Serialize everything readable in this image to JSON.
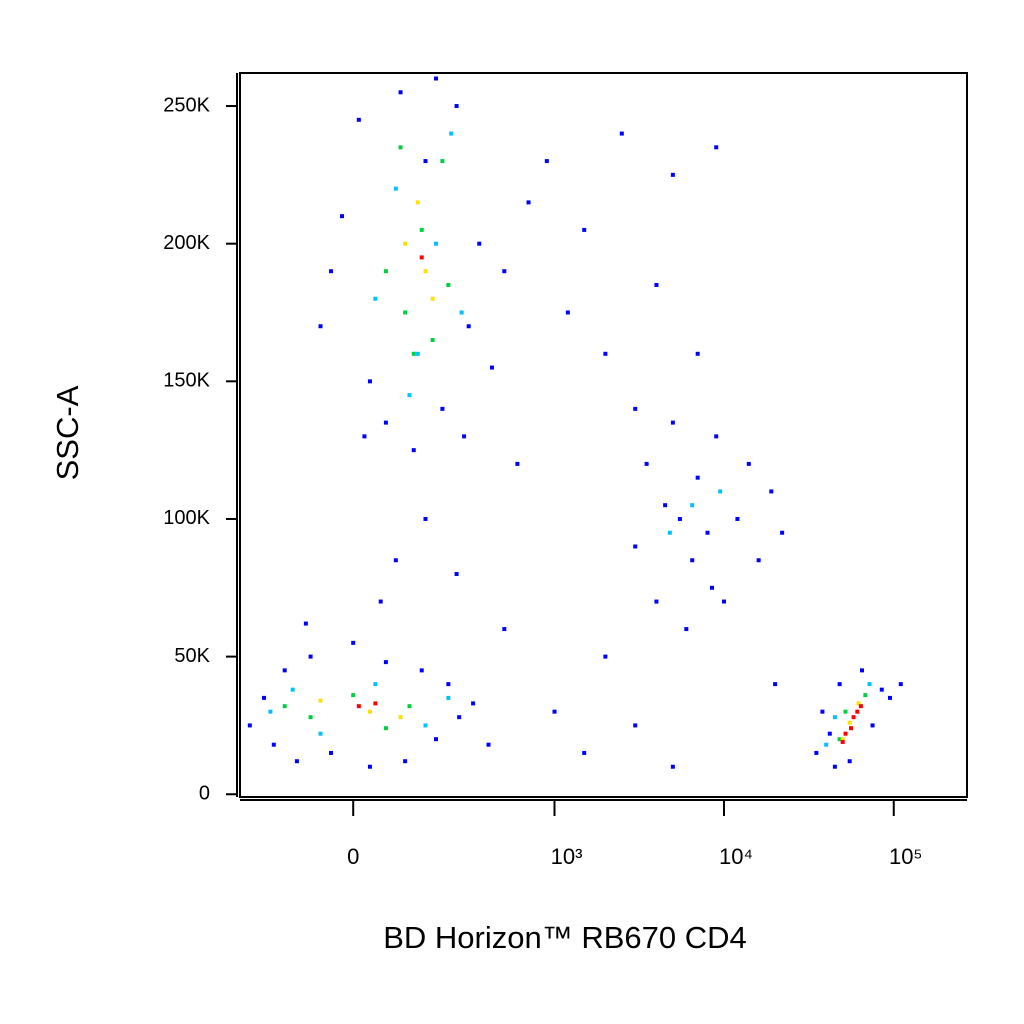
{
  "chart_data": {
    "type": "scatter",
    "x_label": "BD Horizon™ RB670 CD4",
    "y_label": "SSC-A",
    "xscale": "biexponential",
    "xlim": [
      -290,
      270000
    ],
    "ylim": [
      -1000,
      262000
    ],
    "xticks": [
      0,
      {
        "value": 1000,
        "label": "10³"
      },
      {
        "value": 10000,
        "label": "10⁴"
      },
      {
        "value": 100000,
        "label": "10⁵"
      }
    ],
    "yticks": [
      0,
      {
        "value": 50000,
        "label": "50K"
      },
      {
        "value": 100000,
        "label": "100K"
      },
      {
        "value": 150000,
        "label": "150K"
      },
      {
        "value": 200000,
        "label": "200K"
      },
      {
        "value": 250000,
        "label": "250K"
      }
    ],
    "series": [
      {
        "color": "#0000ff",
        "x": [
          -60,
          -20,
          10,
          30,
          60,
          90,
          120,
          150,
          200,
          250,
          300,
          350,
          420,
          -40,
          20,
          180,
          280,
          500,
          700,
          900,
          1200,
          1500,
          2000,
          2500,
          3000,
          4000,
          5000,
          7000,
          9000,
          600,
          -250,
          -200,
          -170,
          -140,
          -110,
          -80,
          -40,
          0,
          30,
          60,
          100,
          140,
          180,
          220,
          260,
          320,
          400,
          -90,
          50,
          150,
          80,
          250,
          500,
          1000,
          2000,
          1500,
          3000,
          5000,
          20000,
          3000,
          3500,
          4000,
          4500,
          5000,
          6000,
          6500,
          7000,
          8000,
          9000,
          10000,
          12000,
          14000,
          16000,
          19000,
          22000,
          8500,
          5500,
          35000,
          38000,
          42000,
          48000,
          55000,
          65000,
          75000,
          85000,
          95000,
          110000,
          45000
        ],
        "values": [
          170000,
          210000,
          245000,
          150000,
          135000,
          255000,
          125000,
          230000,
          140000,
          250000,
          170000,
          200000,
          155000,
          190000,
          130000,
          260000,
          130000,
          190000,
          215000,
          230000,
          175000,
          205000,
          160000,
          240000,
          140000,
          185000,
          225000,
          160000,
          235000,
          120000,
          25000,
          35000,
          18000,
          45000,
          12000,
          50000,
          15000,
          55000,
          10000,
          48000,
          12000,
          45000,
          20000,
          40000,
          28000,
          33000,
          18000,
          62000,
          70000,
          100000,
          85000,
          80000,
          60000,
          30000,
          50000,
          15000,
          25000,
          10000,
          40000,
          90000,
          120000,
          70000,
          105000,
          135000,
          60000,
          85000,
          115000,
          95000,
          130000,
          70000,
          100000,
          120000,
          85000,
          110000,
          95000,
          75000,
          100000,
          15000,
          30000,
          22000,
          40000,
          12000,
          45000,
          25000,
          38000,
          35000,
          40000,
          10000
        ]
      },
      {
        "color": "#00c0ff",
        "x": [
          40,
          80,
          130,
          180,
          230,
          270,
          110,
          -180,
          -120,
          -60,
          40,
          150,
          220,
          6500,
          9500,
          4800,
          45000,
          72000,
          40000
        ],
        "values": [
          180000,
          220000,
          160000,
          200000,
          240000,
          175000,
          145000,
          30000,
          38000,
          22000,
          40000,
          25000,
          35000,
          105000,
          110000,
          95000,
          28000,
          40000,
          18000
        ]
      },
      {
        "color": "#00d040",
        "x": [
          60,
          100,
          140,
          170,
          200,
          90,
          220,
          120,
          -140,
          -80,
          0,
          60,
          110,
          48000,
          68000,
          52000
        ],
        "values": [
          190000,
          175000,
          205000,
          165000,
          230000,
          235000,
          185000,
          160000,
          32000,
          28000,
          36000,
          24000,
          32000,
          20000,
          36000,
          30000
        ]
      },
      {
        "color": "#ffe000",
        "x": [
          100,
          150,
          130,
          170,
          -60,
          30,
          90,
          55000,
          62000,
          50000
        ],
        "values": [
          200000,
          190000,
          215000,
          180000,
          34000,
          30000,
          28000,
          26000,
          33000,
          20000
        ]
      },
      {
        "color": "#ff0000",
        "x": [
          140,
          10,
          40,
          52000,
          58000,
          64000,
          56000,
          61000,
          50000
        ],
        "values": [
          195000,
          32000,
          33000,
          22000,
          28000,
          32000,
          24000,
          30000,
          19000
        ]
      }
    ]
  }
}
